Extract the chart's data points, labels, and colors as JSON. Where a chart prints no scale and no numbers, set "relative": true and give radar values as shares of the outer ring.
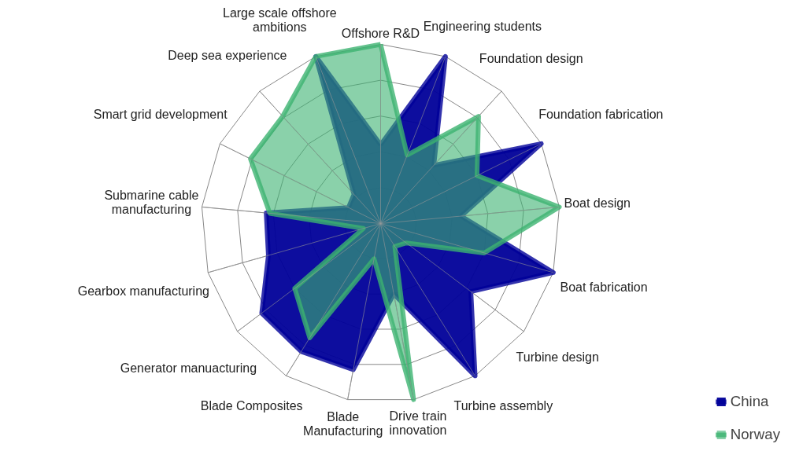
{
  "chart_data": {
    "type": "radar",
    "relative": true,
    "grid": true,
    "legend": "bottom right",
    "categories": [
      "Offshore R&D",
      "Engineering students",
      "Foundation design",
      "Foundation fabrication",
      "Boat design",
      "Boat fabrication",
      "Turbine design",
      "Turbine assembly",
      "Drive train innovation",
      "Blade Manufacturing",
      "Blade Composites",
      "Generator manuacturing",
      "Gearbox manufacturing",
      "Submarine cable manufacturing",
      "Smart grid development",
      "Deep sea experience",
      "Large scale offshore ambitions"
    ],
    "series": [
      {
        "name": "China",
        "color": "#000099",
        "values": [
          0.44,
          1.0,
          0.44,
          1.0,
          0.45,
          1.0,
          0.63,
          1.0,
          0.4,
          0.83,
          0.84,
          0.83,
          0.65,
          0.64,
          0.2,
          0.22,
          1.0
        ]
      },
      {
        "name": "Norway",
        "color": "#3cb371",
        "values": [
          1.0,
          0.41,
          0.81,
          0.6,
          1.0,
          0.6,
          0.18,
          0.15,
          1.0,
          0.2,
          0.75,
          0.6,
          0.1,
          0.62,
          0.81,
          0.81,
          1.0
        ]
      }
    ]
  }
}
